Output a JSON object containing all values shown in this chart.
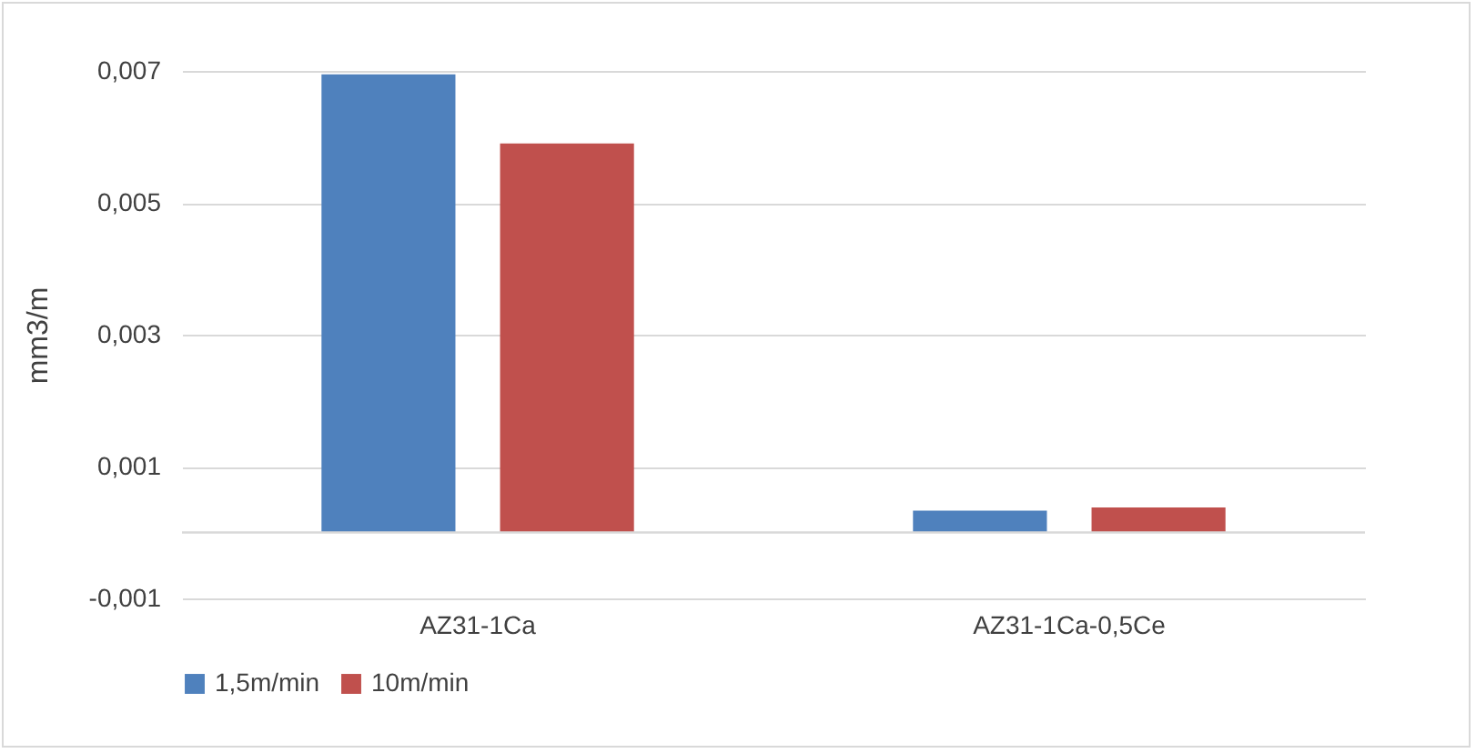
{
  "chart_data": {
    "type": "bar",
    "ylabel": "mm3/m",
    "categories": [
      "AZ31-1Ca",
      "AZ31-1Ca-0,5Ce"
    ],
    "series": [
      {
        "name": "1,5m/min",
        "color": "#4f81bd",
        "values": [
          0.00695,
          0.00033
        ]
      },
      {
        "name": "10m/min",
        "color": "#c0504d",
        "values": [
          0.0059,
          0.00038
        ]
      }
    ],
    "ylim": [
      -0.001,
      0.007
    ],
    "yticks": [
      {
        "value": -0.001,
        "label": "-0,001"
      },
      {
        "value": 0.001,
        "label": "0,001"
      },
      {
        "value": 0.003,
        "label": "0,003"
      },
      {
        "value": 0.005,
        "label": "0,005"
      },
      {
        "value": 0.007,
        "label": "0,007"
      }
    ],
    "grid": "y",
    "legend": "bottom",
    "ref_lines": [
      {
        "axis": "y",
        "value": 0,
        "color": "#d9d9d9"
      }
    ]
  }
}
